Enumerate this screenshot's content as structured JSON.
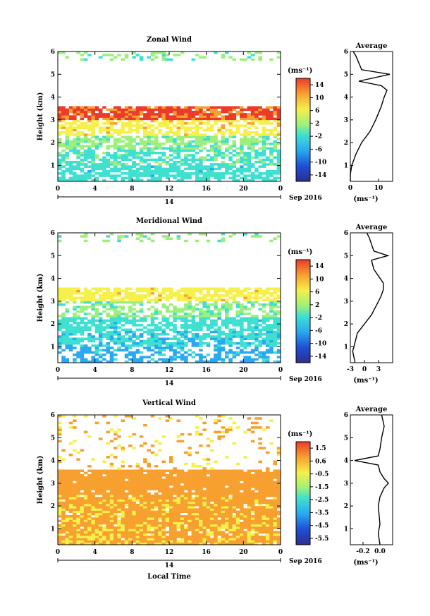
{
  "chart_data": [
    {
      "type": "heatmap",
      "title": "Zonal Wind",
      "xlabel": "",
      "ylabel": "Height (km)",
      "xlim": [
        0,
        24
      ],
      "ylim": [
        0.3,
        6.0
      ],
      "xticks": [
        "0",
        "4",
        "8",
        "12",
        "16",
        "20",
        "0"
      ],
      "yticks": [
        "1",
        "2",
        "3",
        "4",
        "5",
        "6"
      ],
      "date_bar": {
        "day": "14",
        "label": "Sep 2016"
      },
      "colorbar": {
        "unit": "(ms⁻¹)",
        "range": [
          -15,
          15
        ],
        "ticks": [
          "14",
          "10",
          "6",
          "2",
          "-2",
          "-6",
          "-10",
          "-14"
        ]
      },
      "layers": [
        {
          "y0": 0.3,
          "y1": 1.0,
          "value": -2,
          "coverage": 0.75
        },
        {
          "y0": 1.0,
          "y1": 1.7,
          "value": -1,
          "coverage": 0.65
        },
        {
          "y0": 1.7,
          "y1": 2.3,
          "value": 1,
          "coverage": 0.7
        },
        {
          "y0": 2.3,
          "y1": 3.0,
          "value": 6,
          "coverage": 0.6
        },
        {
          "y0": 3.0,
          "y1": 3.6,
          "value": 12,
          "coverage": 0.9
        },
        {
          "y0": 5.6,
          "y1": 6.0,
          "value": 1,
          "coverage": 0.25
        }
      ],
      "average": {
        "title": "Average",
        "xlim": [
          0,
          15
        ],
        "xticks": [
          "0",
          "10"
        ],
        "xlabel": "(ms⁻¹)",
        "profile": [
          [
            0.3,
            0
          ],
          [
            0.6,
            0
          ],
          [
            1.0,
            0.5
          ],
          [
            1.5,
            2
          ],
          [
            2.0,
            4
          ],
          [
            2.5,
            7
          ],
          [
            3.0,
            9
          ],
          [
            3.3,
            10
          ],
          [
            3.6,
            11
          ],
          [
            4.0,
            12
          ],
          [
            4.3,
            13
          ],
          [
            4.5,
            11
          ],
          [
            4.7,
            3
          ],
          [
            5.0,
            14
          ],
          [
            5.2,
            4
          ],
          [
            5.5,
            3
          ],
          [
            5.8,
            2
          ],
          [
            6.0,
            1
          ]
        ]
      }
    },
    {
      "type": "heatmap",
      "title": "Meridional Wind",
      "xlabel": "",
      "ylabel": "Height (km)",
      "xlim": [
        0,
        24
      ],
      "ylim": [
        0.3,
        6.0
      ],
      "xticks": [
        "0",
        "4",
        "8",
        "12",
        "16",
        "20",
        "0"
      ],
      "yticks": [
        "1",
        "2",
        "3",
        "4",
        "5",
        "6"
      ],
      "date_bar": {
        "day": "14",
        "label": "Sep 2016"
      },
      "colorbar": {
        "unit": "(ms⁻¹)",
        "range": [
          -15,
          15
        ],
        "ticks": [
          "14",
          "10",
          "6",
          "2",
          "-2",
          "-6",
          "-10",
          "-14"
        ]
      },
      "layers": [
        {
          "y0": 0.3,
          "y1": 1.0,
          "value": -5,
          "coverage": 0.55
        },
        {
          "y0": 1.0,
          "y1": 1.7,
          "value": -3,
          "coverage": 0.7
        },
        {
          "y0": 1.7,
          "y1": 2.3,
          "value": -2,
          "coverage": 0.75
        },
        {
          "y0": 2.3,
          "y1": 3.0,
          "value": 1,
          "coverage": 0.55
        },
        {
          "y0": 3.0,
          "y1": 3.6,
          "value": 6,
          "coverage": 0.75
        },
        {
          "y0": 5.6,
          "y1": 6.0,
          "value": 1,
          "coverage": 0.25
        }
      ],
      "average": {
        "title": "Average",
        "xlim": [
          -3,
          6
        ],
        "xticks": [
          "-3",
          "0",
          "3"
        ],
        "xlabel": "(ms⁻¹)",
        "profile": [
          [
            0.3,
            -2
          ],
          [
            0.8,
            -2.5
          ],
          [
            1.2,
            -2
          ],
          [
            1.6,
            -1.5
          ],
          [
            2.0,
            0
          ],
          [
            2.4,
            1.5
          ],
          [
            2.8,
            2.5
          ],
          [
            3.2,
            3.5
          ],
          [
            3.5,
            4
          ],
          [
            3.8,
            4
          ],
          [
            4.1,
            3
          ],
          [
            4.4,
            2
          ],
          [
            4.8,
            1.5
          ],
          [
            5.0,
            5
          ],
          [
            5.2,
            2
          ],
          [
            5.5,
            1.5
          ],
          [
            5.8,
            1
          ],
          [
            6.0,
            0.5
          ]
        ]
      }
    },
    {
      "type": "heatmap",
      "title": "Vertical Wind",
      "xlabel": "Local Time",
      "ylabel": "Height (km)",
      "xlim": [
        0,
        24
      ],
      "ylim": [
        0.3,
        6.0
      ],
      "xticks": [
        "0",
        "4",
        "8",
        "12",
        "16",
        "20",
        "0"
      ],
      "yticks": [
        "1",
        "2",
        "3",
        "4",
        "5",
        "6"
      ],
      "date_bar": {
        "day": "14",
        "label": "Sep 2016"
      },
      "colorbar": {
        "unit": "(ms⁻¹)",
        "range": [
          -6,
          2
        ],
        "ticks": [
          "1.5",
          "0.6",
          "-0.5",
          "-1.5",
          "-2.5",
          "-3.5",
          "-4.5",
          "-5.5"
        ]
      },
      "layers": [
        {
          "y0": 0.3,
          "y1": 1.5,
          "value": 0.2,
          "coverage": 0.95
        },
        {
          "y0": 1.5,
          "y1": 2.5,
          "value": 0.3,
          "coverage": 0.95
        },
        {
          "y0": 2.5,
          "y1": 3.6,
          "value": 0.5,
          "coverage": 0.95
        },
        {
          "y0": 3.6,
          "y1": 6.0,
          "value": 0.1,
          "coverage": 0.12
        }
      ],
      "average": {
        "title": "Average",
        "xlim": [
          -0.35,
          0.15
        ],
        "xticks": [
          "-0.2",
          "0.0"
        ],
        "xlabel": "(ms⁻¹)",
        "profile": [
          [
            0.3,
            0
          ],
          [
            0.8,
            -0.02
          ],
          [
            1.2,
            0
          ],
          [
            1.6,
            -0.01
          ],
          [
            2.0,
            -0.02
          ],
          [
            2.4,
            0
          ],
          [
            2.8,
            0.05
          ],
          [
            3.0,
            0.1
          ],
          [
            3.2,
            0.05
          ],
          [
            3.5,
            0
          ],
          [
            3.8,
            -0.02
          ],
          [
            4.0,
            -0.3
          ],
          [
            4.2,
            -0.02
          ],
          [
            4.5,
            0
          ],
          [
            5.0,
            0.02
          ],
          [
            5.5,
            0.05
          ],
          [
            6.0,
            0.02
          ]
        ]
      }
    }
  ]
}
